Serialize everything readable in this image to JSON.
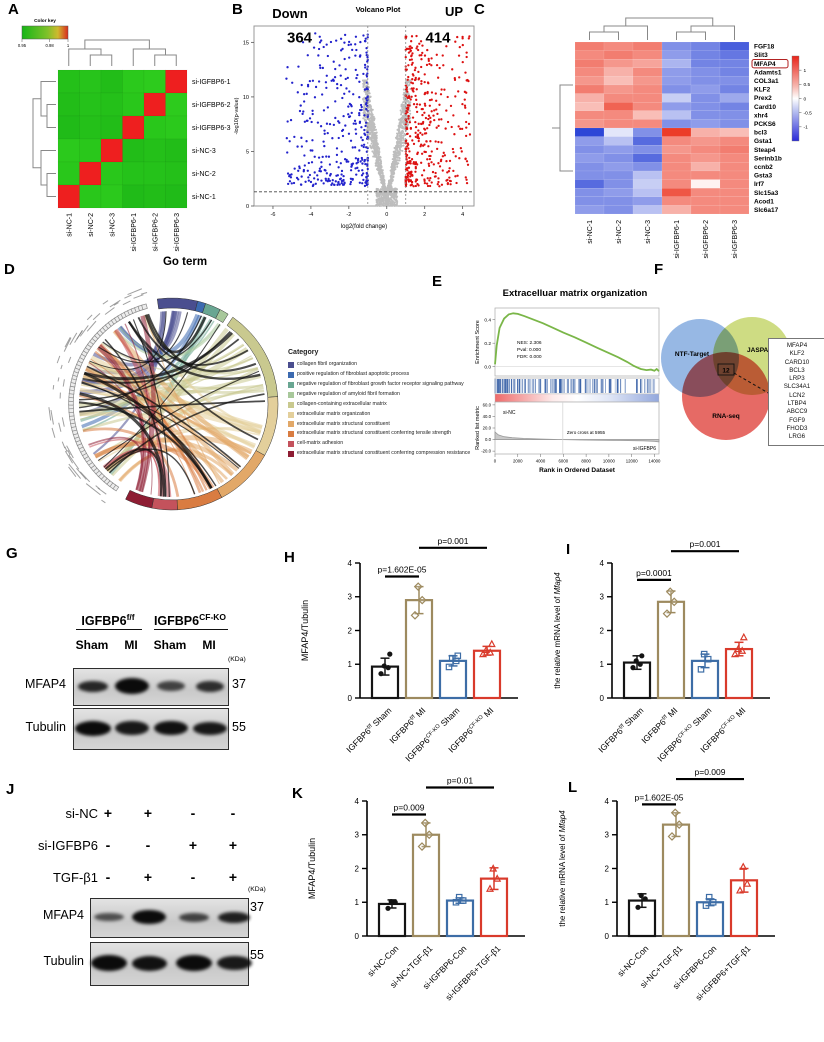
{
  "letters": {
    "A": "A",
    "B": "B",
    "C": "C",
    "D": "D",
    "E": "E",
    "F": "F",
    "G": "G",
    "H": "H",
    "I": "I",
    "J": "J",
    "K": "K",
    "L": "L"
  },
  "chart_data": [
    {
      "id": "A",
      "type": "heatmap",
      "subtype": "correlation",
      "color_key": {
        "title": "Color key",
        "ticks": [
          "0.95",
          "0.98",
          "1"
        ]
      },
      "rows": [
        "si-IGFBP6-1",
        "si-IGFBP6-2",
        "si-IGFBP6-3",
        "si-NC-3",
        "si-NC-2",
        "si-NC-1"
      ],
      "cols": [
        "si-NC-1",
        "si-NC-2",
        "si-NC-3",
        "si-IGFBP6-1",
        "si-IGFBP6-2",
        "si-IGFBP6-3"
      ],
      "values": [
        [
          0.953,
          0.955,
          0.952,
          0.957,
          0.958,
          1
        ],
        [
          0.952,
          0.954,
          0.953,
          0.956,
          1,
          0.958
        ],
        [
          0.951,
          0.953,
          0.952,
          1,
          0.956,
          0.957
        ],
        [
          0.957,
          0.956,
          1,
          0.952,
          0.953,
          0.952
        ],
        [
          0.956,
          1,
          0.956,
          0.954,
          0.954,
          0.953
        ],
        [
          1,
          0.956,
          0.957,
          0.951,
          0.952,
          0.951
        ]
      ]
    },
    {
      "id": "B",
      "type": "scatter",
      "subtype": "volcano",
      "title": "Volcano Plot",
      "down_label": "Down",
      "down_count": 364,
      "up_label": "UP",
      "up_count": 414,
      "xlabel": "log2(fold change)",
      "ylabel": "-log10(p-value)",
      "xticks": [
        -6,
        -4,
        -2,
        0,
        2,
        4
      ],
      "yticks": [
        0,
        5,
        10,
        15
      ],
      "xlim": [
        -7,
        4.6
      ],
      "ylim": [
        0,
        16.5
      ],
      "fc_thresholds": [
        -1,
        1
      ],
      "pvalue_line": 1.3,
      "colors": {
        "down": "#2222cc",
        "up": "#dd1111",
        "ns": "#bdbdbd"
      }
    },
    {
      "id": "C",
      "type": "heatmap",
      "subtype": "expression",
      "rows": [
        "FGF18",
        "Slit3",
        "MFAP4",
        "Adamts1",
        "COL3a1",
        "KLF2",
        "Prex2",
        "Card10",
        "xhr4",
        "PCKS6",
        "bcl3",
        "Gsta1",
        "Steap4",
        "Serinb1b",
        "ccnb2",
        "Gsta3",
        "Irf7",
        "Slc15a3",
        "Acod1",
        "Slc6a17"
      ],
      "cols": [
        "si-NC-1",
        "si-NC-2",
        "si-NC-3",
        "si-IGFBP6-1",
        "si-IGFBP6-2",
        "si-IGFBP6-3"
      ],
      "colorbar_ticks": [
        "1",
        "0.5",
        "0",
        "-0.5",
        "-1"
      ],
      "highlighted_gene": "MFAP4",
      "values": [
        [
          1.0,
          0.9,
          1.0,
          -0.9,
          -1.0,
          -1.3
        ],
        [
          0.9,
          1.0,
          0.9,
          -0.8,
          -1.0,
          -1.1
        ],
        [
          1.0,
          0.8,
          0.7,
          -0.6,
          -1.0,
          -1.0
        ],
        [
          0.9,
          0.6,
          0.9,
          -0.8,
          -0.9,
          -1.0
        ],
        [
          0.8,
          0.5,
          0.8,
          -0.8,
          -0.9,
          -0.9
        ],
        [
          1.0,
          0.8,
          0.9,
          -0.9,
          -0.8,
          -1.0
        ],
        [
          0.6,
          0.9,
          0.9,
          -0.4,
          -0.9,
          -0.7
        ],
        [
          0.5,
          1.2,
          0.9,
          -0.8,
          -0.9,
          -1.0
        ],
        [
          0.9,
          0.9,
          0.5,
          -0.5,
          -0.9,
          -0.9
        ],
        [
          0.8,
          0.9,
          0.9,
          -0.9,
          -0.8,
          -0.9
        ],
        [
          -1.5,
          -0.2,
          -0.9,
          1.5,
          0.6,
          0.5
        ],
        [
          -0.8,
          -0.5,
          -1.2,
          0.9,
          0.8,
          0.9
        ],
        [
          -0.9,
          -0.8,
          -0.9,
          0.8,
          0.9,
          1.0
        ],
        [
          -0.8,
          -0.9,
          -1.2,
          0.9,
          0.8,
          0.9
        ],
        [
          -0.9,
          -0.8,
          -0.9,
          0.9,
          0.6,
          0.9
        ],
        [
          -0.9,
          -0.9,
          -0.5,
          0.9,
          0.9,
          0.9
        ],
        [
          -1.2,
          -0.9,
          -0.4,
          0.9,
          0.1,
          0.9
        ],
        [
          -0.9,
          -0.8,
          -0.5,
          1.3,
          0.9,
          0.9
        ],
        [
          -0.9,
          -0.9,
          -0.8,
          0.9,
          0.9,
          0.9
        ],
        [
          -0.8,
          -0.9,
          -0.5,
          0.6,
          0.9,
          0.9
        ]
      ]
    },
    {
      "id": "D",
      "type": "chord",
      "title": "Go term",
      "legend_title": "Category",
      "categories": [
        {
          "label": "collagen fibril organization",
          "color": "#4a4e8f"
        },
        {
          "label": "positive regulation of fibroblast apoptotic process",
          "color": "#3c6ab0"
        },
        {
          "label": "negative regulation of fibroblast growth factor receptor signaling pathway",
          "color": "#69a692"
        },
        {
          "label": "negative regulation of amyloid fibril formation",
          "color": "#a8c89b"
        },
        {
          "label": "collagen-containing extracellular matrix",
          "color": "#c9c98f"
        },
        {
          "label": "extracellular matrix organization",
          "color": "#e3cf9b"
        },
        {
          "label": "extracellular matrix structural constituent",
          "color": "#e2a868"
        },
        {
          "label": "extracellular matrix structural constituent conferring tensile strength",
          "color": "#d97c41"
        },
        {
          "label": "cell-matrix adhesion",
          "color": "#c4525c"
        },
        {
          "label": "extracellular matrix structural constituent conferring compression resistance",
          "color": "#8e1d33"
        }
      ]
    },
    {
      "id": "E",
      "type": "line",
      "subtype": "gsea",
      "title": "Extracelluar matrix organization",
      "ylabel_top": "Enrichment Score",
      "ylabel_bottom": "Ranked list metric",
      "xlabel": "Rank in Ordered Dataset",
      "stats": [
        "NES: 2.306",
        "Pval: 0.000",
        "FDR: 0.000"
      ],
      "group_labels": [
        "si-NC",
        "si-IGFBP6"
      ],
      "zero_cross_label": "Zero cross at 5955",
      "zero_cross_rank": 5955,
      "xticks": [
        0,
        2000,
        4000,
        6000,
        8000,
        10000,
        12000,
        14000
      ],
      "yticks_top": [
        "0.0",
        "0.2",
        "0.4"
      ],
      "yticks_bottom": [
        "60.0",
        "40.0",
        "20.0",
        "0.0",
        "-20.0"
      ],
      "es_curve": [
        [
          0,
          0.02
        ],
        [
          150,
          0.18
        ],
        [
          400,
          0.33
        ],
        [
          800,
          0.41
        ],
        [
          1200,
          0.445
        ],
        [
          1600,
          0.455
        ],
        [
          2000,
          0.45
        ],
        [
          2600,
          0.43
        ],
        [
          3400,
          0.4
        ],
        [
          4200,
          0.37
        ],
        [
          5000,
          0.335
        ],
        [
          6000,
          0.29
        ],
        [
          7000,
          0.25
        ],
        [
          8000,
          0.205
        ],
        [
          9000,
          0.16
        ],
        [
          10000,
          0.115
        ],
        [
          10800,
          0.08
        ],
        [
          11600,
          0.04
        ],
        [
          12200,
          0.005
        ],
        [
          12800,
          -0.02
        ],
        [
          13300,
          -0.03
        ],
        [
          13700,
          -0.025
        ],
        [
          14000,
          -0.035
        ],
        [
          14200,
          -0.02
        ],
        [
          14400,
          -0.04
        ]
      ],
      "metric_curve": [
        [
          0,
          13
        ],
        [
          300,
          8
        ],
        [
          800,
          5
        ],
        [
          1500,
          3.2
        ],
        [
          2500,
          2
        ],
        [
          4000,
          1
        ],
        [
          5955,
          0
        ],
        [
          7500,
          -0.7
        ],
        [
          9000,
          -1.1
        ],
        [
          11000,
          -1.6
        ],
        [
          13000,
          -2.2
        ],
        [
          14000,
          -3
        ],
        [
          14400,
          -4
        ]
      ]
    },
    {
      "id": "F",
      "type": "venn",
      "sets": [
        {
          "label": "NTF-Target",
          "color": "#85abdf"
        },
        {
          "label": "JASPAR",
          "color": "#c5d66d"
        },
        {
          "label": "RNA-seq",
          "color": "#e2504a"
        }
      ],
      "overlap_count": "12",
      "overlap_genes": [
        "MFAP4",
        "KLF2",
        "CARD10",
        "BCL3",
        "LRP3",
        "SLC34A1",
        "LCN2",
        "LTBP4",
        "ABCC9",
        "FGF9",
        "FHOD3",
        "LRG6"
      ]
    },
    {
      "id": "H",
      "type": "bar",
      "ylabel": "MFAP4/Tubulin",
      "ylim": [
        0,
        4
      ],
      "yticks": [
        0,
        1,
        2,
        3,
        4
      ],
      "categories": [
        "IGFBP6^f/f^ Sham",
        "IGFBP6^f/f^ MI",
        "IGFBP6^CF-KO^ Sham",
        "IGFBP6^CF-KO^ MI"
      ],
      "values": [
        0.93,
        2.9,
        1.1,
        1.4
      ],
      "errors": [
        0.25,
        0.4,
        0.15,
        0.13
      ],
      "points": [
        [
          0.72,
          0.9,
          0.95,
          1.3
        ],
        [
          2.45,
          2.9,
          3.3
        ],
        [
          0.92,
          1.1,
          1.18,
          1.25
        ],
        [
          1.3,
          1.35,
          1.42,
          1.6
        ]
      ],
      "colors": [
        "#141414",
        "#9d8a5f",
        "#3d6da6",
        "#d93a2b"
      ],
      "markers": [
        "circle",
        "diamond",
        "square",
        "triangle"
      ],
      "annotations": [
        {
          "from": 0,
          "to": 1,
          "y": 3.6,
          "label": "p=1.602E-05"
        },
        {
          "from": 1,
          "to": 3,
          "y": 4.45,
          "label": "p=0.001"
        }
      ]
    },
    {
      "id": "I",
      "type": "bar",
      "ylabel": "the relative mRNA level of *Mfap4*",
      "ylim": [
        0,
        4
      ],
      "yticks": [
        0,
        1,
        2,
        3,
        4
      ],
      "categories": [
        "IGFBP6^f/f^ Sham",
        "IGFBP6^f/f^ MI",
        "IGFBP6^CF-KO^ Sham",
        "IGFBP6^CF-KO^ MI"
      ],
      "values": [
        1.05,
        2.85,
        1.1,
        1.45
      ],
      "errors": [
        0.2,
        0.32,
        0.2,
        0.2
      ],
      "points": [
        [
          0.9,
          1.0,
          1.1,
          1.25
        ],
        [
          2.5,
          2.85,
          3.15
        ],
        [
          0.85,
          1.15,
          1.3
        ],
        [
          1.3,
          1.4,
          1.45,
          1.8
        ]
      ],
      "colors": [
        "#141414",
        "#9d8a5f",
        "#3d6da6",
        "#d93a2b"
      ],
      "markers": [
        "circle",
        "diamond",
        "square",
        "triangle"
      ],
      "annotations": [
        {
          "from": 0,
          "to": 1,
          "y": 3.5,
          "label": "p=0.0001"
        },
        {
          "from": 1,
          "to": 3,
          "y": 4.35,
          "label": "p=0.001"
        }
      ]
    },
    {
      "id": "K",
      "type": "bar",
      "ylabel": "MFAP4/Tubulin",
      "ylim": [
        0,
        4
      ],
      "yticks": [
        0,
        1,
        2,
        3,
        4
      ],
      "categories": [
        "si-NC-Con",
        "si-NC+TGF-β1",
        "si-IGFBP6-Con",
        "si-IGFBP6+TGF-β1"
      ],
      "values": [
        0.95,
        3.0,
        1.05,
        1.7
      ],
      "errors": [
        0.12,
        0.35,
        0.08,
        0.32
      ],
      "points": [
        [
          0.82,
          1.0,
          1.02
        ],
        [
          2.65,
          3.0,
          3.35
        ],
        [
          1.0,
          1.05,
          1.15
        ],
        [
          1.4,
          1.7,
          2.0
        ]
      ],
      "colors": [
        "#141414",
        "#9d8a5f",
        "#3d6da6",
        "#d93a2b"
      ],
      "markers": [
        "circle",
        "diamond",
        "square",
        "triangle"
      ],
      "annotations": [
        {
          "from": 0,
          "to": 1,
          "y": 3.6,
          "label": "p=0.009"
        },
        {
          "from": 1,
          "to": 3,
          "y": 4.4,
          "label": "p=0.01"
        }
      ]
    },
    {
      "id": "L",
      "type": "bar",
      "ylabel": "the relative mRNA level of *Mfap4*",
      "ylim": [
        0,
        4
      ],
      "yticks": [
        0,
        1,
        2,
        3,
        4
      ],
      "categories": [
        "si-NC-Con",
        "si-NC+TGF-β1",
        "si-IGFBP6-Con",
        "si-IGFBP6+TGF-β1"
      ],
      "values": [
        1.05,
        3.3,
        1.0,
        1.65
      ],
      "errors": [
        0.2,
        0.35,
        0.1,
        0.35
      ],
      "points": [
        [
          0.85,
          1.1,
          1.2
        ],
        [
          2.95,
          3.3,
          3.65
        ],
        [
          0.9,
          1.0,
          1.15
        ],
        [
          1.35,
          1.55,
          2.05
        ]
      ],
      "colors": [
        "#141414",
        "#9d8a5f",
        "#3d6da6",
        "#d93a2b"
      ],
      "markers": [
        "circle",
        "diamond",
        "square",
        "triangle"
      ],
      "annotations": [
        {
          "from": 0,
          "to": 1,
          "y": 3.9,
          "label": "p=1.602E-05"
        },
        {
          "from": 1,
          "to": 3,
          "y": 4.65,
          "label": "p=0.009"
        }
      ]
    }
  ],
  "western_blots": {
    "G": {
      "group_headers": [
        "IGFBP6^f/f^",
        "IGFBP6^CF-KO^"
      ],
      "lane_labels": [
        "Sham",
        "MI",
        "Sham",
        "MI"
      ],
      "kda_label": "(KDa)",
      "blots": [
        {
          "label": "MFAP4",
          "marker": "37",
          "bands": [
            0.8,
            1.0,
            0.6,
            0.75
          ]
        },
        {
          "label": "Tubulin",
          "marker": "55",
          "bands": [
            1.0,
            0.9,
            0.95,
            0.9
          ]
        }
      ]
    },
    "J": {
      "condition_rows": [
        {
          "label": "si-NC",
          "signs": [
            "+",
            "+",
            "-",
            "-"
          ]
        },
        {
          "label": "si-IGFBP6",
          "signs": [
            "-",
            "-",
            "+",
            "+"
          ]
        },
        {
          "label": "TGF-β1",
          "signs": [
            "-",
            "+",
            "-",
            "+"
          ]
        }
      ],
      "kda_label": "(KDa)",
      "blots": [
        {
          "label": "MFAP4",
          "marker": "37",
          "bands": [
            0.5,
            1.0,
            0.6,
            0.85
          ]
        },
        {
          "label": "Tubulin",
          "marker": "55",
          "bands": [
            1.0,
            0.95,
            1.0,
            0.9
          ]
        }
      ]
    }
  }
}
